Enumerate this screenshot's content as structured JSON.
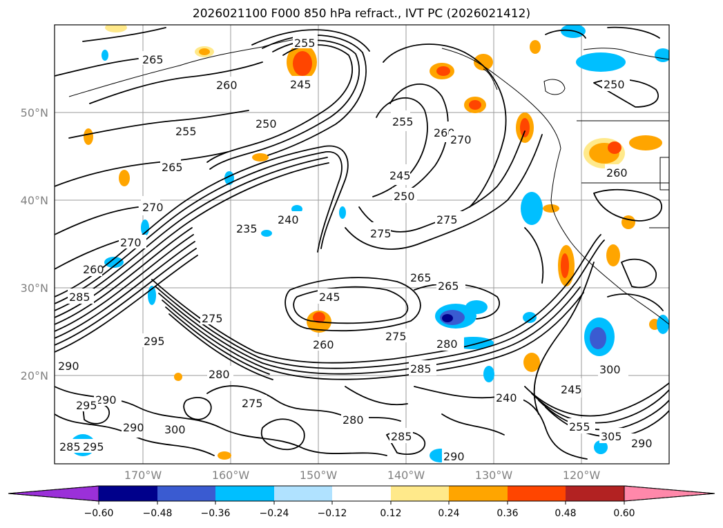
{
  "title": "2026021100 F000 850 hPa refract., IVT PC (2026021412)",
  "map": {
    "lat_labels": [
      "50°N",
      "40°N",
      "30°N",
      "20°N"
    ],
    "lon_labels": [
      "170°W",
      "160°W",
      "150°W",
      "140°W",
      "130°W",
      "120°W"
    ],
    "contour_labels": [
      "265",
      "255",
      "260",
      "245",
      "250",
      "255",
      "265",
      "270",
      "270",
      "235",
      "240",
      "260",
      "285",
      "295",
      "275",
      "280",
      "290",
      "295",
      "290",
      "300",
      "290",
      "285",
      "295",
      "285",
      "275",
      "280",
      "290",
      "245",
      "260",
      "275",
      "265",
      "275",
      "285",
      "265",
      "245",
      "250",
      "255",
      "260",
      "270",
      "275",
      "280",
      "240",
      "245",
      "300",
      "305",
      "290",
      "255",
      "250",
      "260"
    ]
  },
  "colorbar": {
    "ticks": [
      "−0.60",
      "−0.48",
      "−0.36",
      "−0.24",
      "−0.12",
      "0.12",
      "0.24",
      "0.36",
      "0.48",
      "0.60"
    ],
    "colors": [
      "#9b30d9",
      "#00008b",
      "#3a5bd1",
      "#00bfff",
      "#b0e2ff",
      "#ffffff",
      "#ffe98a",
      "#ffa500",
      "#ff4500",
      "#b22222",
      "#ff88aa"
    ]
  }
}
